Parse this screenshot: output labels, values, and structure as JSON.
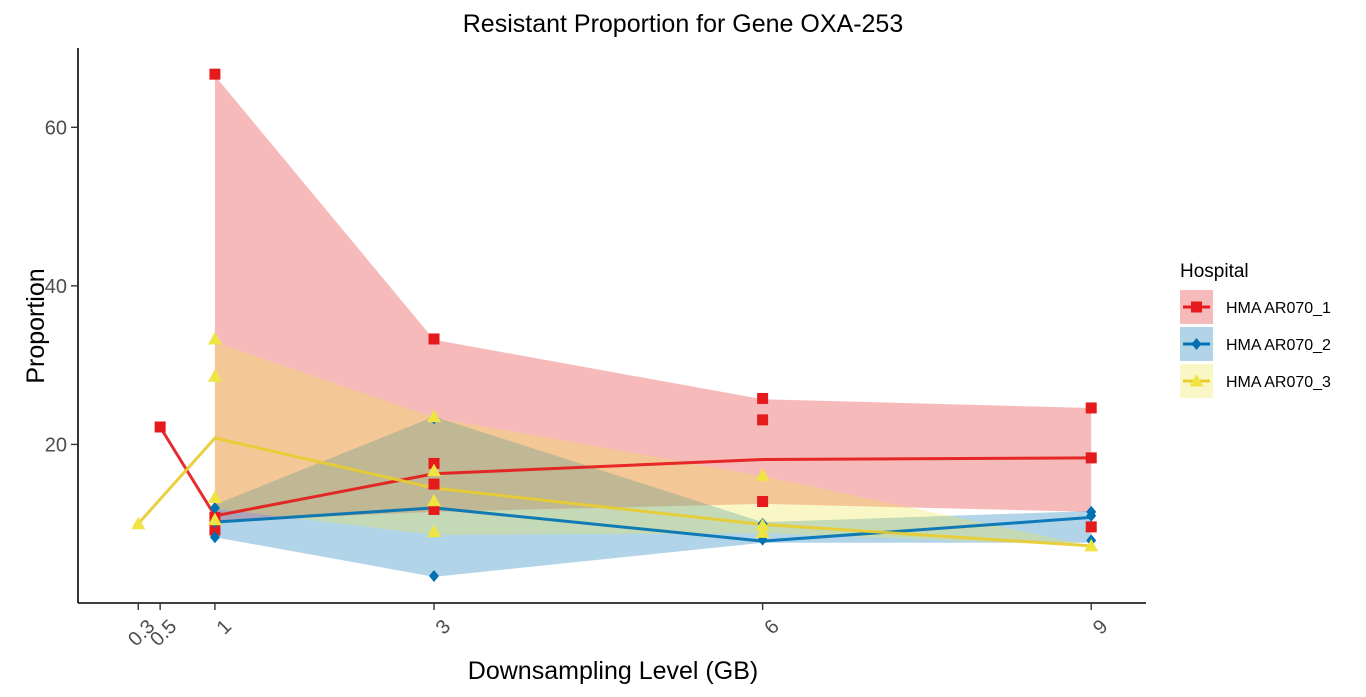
{
  "chart_data": {
    "type": "line",
    "title": "Resistant Proportion for Gene OXA-253",
    "xlabel": "Downsampling Level (GB)",
    "ylabel": "Proportion",
    "x_ticks": [
      "0.3",
      "0.5",
      "1",
      "3",
      "6",
      "9"
    ],
    "x_tick_values": [
      0.3,
      0.5,
      1,
      3,
      6,
      9
    ],
    "y_ticks": [
      20,
      40,
      60
    ],
    "xlim": [
      -0.25,
      9.5
    ],
    "ylim": [
      0,
      70
    ],
    "grid": false,
    "legend": {
      "title": "Hospital",
      "placement": "right"
    },
    "series": [
      {
        "name": "HMA AR070_1",
        "color": "#e41a1c",
        "marker": "square",
        "points": [
          {
            "x": 0.5,
            "y": 22.2
          },
          {
            "x": 1,
            "y": 66.7
          },
          {
            "x": 1,
            "y": 10.8
          },
          {
            "x": 1,
            "y": 9.2
          },
          {
            "x": 3,
            "y": 33.3
          },
          {
            "x": 3,
            "y": 17.6
          },
          {
            "x": 3,
            "y": 15.0
          },
          {
            "x": 3,
            "y": 11.8
          },
          {
            "x": 6,
            "y": 25.8
          },
          {
            "x": 6,
            "y": 23.1
          },
          {
            "x": 6,
            "y": 12.8
          },
          {
            "x": 9,
            "y": 24.6
          },
          {
            "x": 9,
            "y": 18.3
          },
          {
            "x": 9,
            "y": 9.6
          }
        ],
        "mean_line": [
          {
            "x": 0.5,
            "y": 22.2
          },
          {
            "x": 1,
            "y": 11.0
          },
          {
            "x": 3,
            "y": 16.3
          },
          {
            "x": 6,
            "y": 18.1
          },
          {
            "x": 9,
            "y": 18.3
          }
        ],
        "band": [
          {
            "x": 1,
            "lo": 10.3,
            "hi": 66.5
          },
          {
            "x": 3,
            "lo": 11.5,
            "hi": 33.2
          },
          {
            "x": 6,
            "lo": 12.5,
            "hi": 25.7
          },
          {
            "x": 9,
            "lo": 11.5,
            "hi": 24.6
          }
        ]
      },
      {
        "name": "HMA AR070_2",
        "color": "#0072b2",
        "marker": "diamond",
        "points": [
          {
            "x": 1,
            "y": 12.0
          },
          {
            "x": 1,
            "y": 10.2
          },
          {
            "x": 1,
            "y": 8.3
          },
          {
            "x": 3,
            "y": 23.3
          },
          {
            "x": 3,
            "y": 3.4
          },
          {
            "x": 6,
            "y": 10.0
          },
          {
            "x": 6,
            "y": 8.0
          },
          {
            "x": 9,
            "y": 11.5
          },
          {
            "x": 9,
            "y": 11.0
          },
          {
            "x": 9,
            "y": 7.9
          }
        ],
        "mean_line": [
          {
            "x": 1,
            "y": 10.2
          },
          {
            "x": 3,
            "y": 12.0
          },
          {
            "x": 6,
            "y": 7.8
          },
          {
            "x": 9,
            "y": 10.8
          }
        ],
        "band": [
          {
            "x": 1,
            "lo": 8.3,
            "hi": 12.4
          },
          {
            "x": 3,
            "lo": 3.3,
            "hi": 23.5
          },
          {
            "x": 6,
            "lo": 7.6,
            "hi": 10.2
          },
          {
            "x": 9,
            "lo": 7.6,
            "hi": 11.6
          }
        ]
      },
      {
        "name": "HMA AR070_3",
        "color": "#f0e442",
        "line_color": "#e8cc30",
        "marker": "triangle",
        "points": [
          {
            "x": 0.3,
            "y": 10.0
          },
          {
            "x": 1,
            "y": 33.3
          },
          {
            "x": 1,
            "y": 28.6
          },
          {
            "x": 1,
            "y": 13.3
          },
          {
            "x": 1,
            "y": 10.5
          },
          {
            "x": 3,
            "y": 23.5
          },
          {
            "x": 3,
            "y": 16.7
          },
          {
            "x": 3,
            "y": 12.9
          },
          {
            "x": 3,
            "y": 9.0
          },
          {
            "x": 6,
            "y": 16.1
          },
          {
            "x": 6,
            "y": 9.8
          },
          {
            "x": 6,
            "y": 8.9
          },
          {
            "x": 9,
            "y": 7.2
          }
        ],
        "mean_line": [
          {
            "x": 0.3,
            "y": 10.0
          },
          {
            "x": 1,
            "y": 20.8
          },
          {
            "x": 3,
            "y": 14.5
          },
          {
            "x": 6,
            "y": 9.9
          },
          {
            "x": 9,
            "y": 7.2
          }
        ],
        "band": [
          {
            "x": 1,
            "lo": 11.9,
            "hi": 32.9
          },
          {
            "x": 3,
            "lo": 8.6,
            "hi": 23.4
          },
          {
            "x": 6,
            "lo": 8.8,
            "hi": 16.0
          },
          {
            "x": 9,
            "lo": 7.2,
            "hi": 7.2
          }
        ]
      }
    ]
  }
}
